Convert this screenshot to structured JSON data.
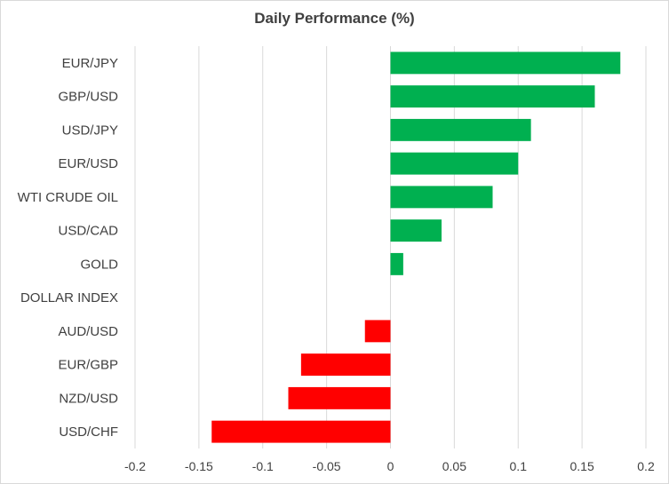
{
  "chart_data": {
    "type": "bar",
    "orientation": "horizontal",
    "title": "Daily Performance (%)",
    "categories": [
      "EUR/JPY",
      "GBP/USD",
      "USD/JPY",
      "EUR/USD",
      "WTI CRUDE OIL",
      "USD/CAD",
      "GOLD",
      "DOLLAR INDEX",
      "AUD/USD",
      "EUR/GBP",
      "NZD/USD",
      "USD/CHF"
    ],
    "values": [
      0.18,
      0.16,
      0.11,
      0.1,
      0.08,
      0.04,
      0.01,
      0.0,
      -0.02,
      -0.07,
      -0.08,
      -0.14
    ],
    "xlim": [
      -0.2,
      0.2
    ],
    "xticks": [
      "-0.2",
      "-0.15",
      "-0.1",
      "-0.05",
      "0",
      "0.05",
      "0.1",
      "0.15",
      "0.2"
    ],
    "grid": "vertical",
    "colors": {
      "positive": "#00b050",
      "negative": "#ff0000",
      "grid": "#d9d9d9"
    }
  }
}
